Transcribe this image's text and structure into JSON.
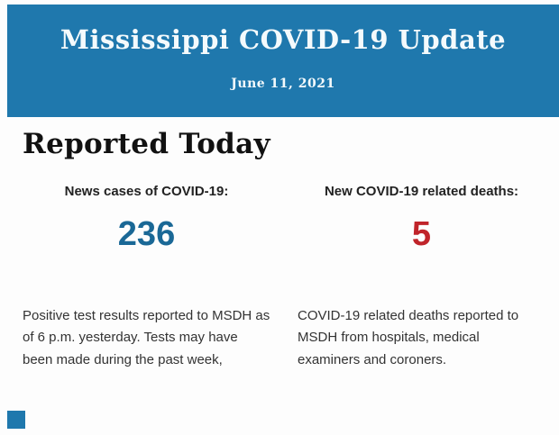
{
  "header": {
    "title": "Mississippi COVID-19 Update",
    "date": "June 11, 2021",
    "background_color": "#1f78ad",
    "text_color": "#f4fafc"
  },
  "section": {
    "heading": "Reported Today"
  },
  "stats": [
    {
      "label": "News cases of COVID-19:",
      "value": "236",
      "value_color": "#1a6896",
      "description": "Positive test results reported to MSDH as of 6 p.m. yesterday. Tests may have been made during the past week,"
    },
    {
      "label": "New COVID-19 related deaths:",
      "value": "5",
      "value_color": "#c0242a",
      "description": "COVID-19 related deaths reported to MSDH from hospitals, medical examiners and coroners."
    }
  ],
  "footer": {
    "accent_square_color": "#1f78ad"
  }
}
